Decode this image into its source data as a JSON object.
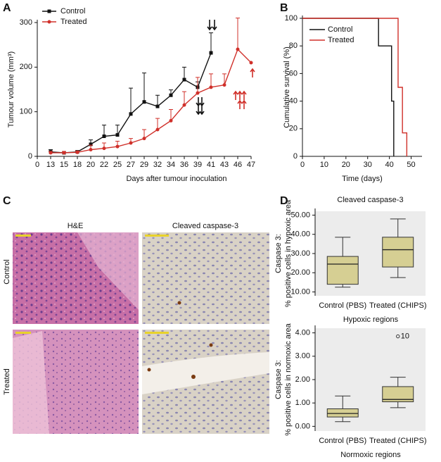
{
  "chart_data": [
    {
      "type": "line",
      "panel_label": "A",
      "x_label": "Days after tumour inoculation",
      "y_label": "Tumour volume (mm³)",
      "categories": [
        "0",
        "13",
        "15",
        "18",
        "20",
        "22",
        "25",
        "27",
        "29",
        "32",
        "34",
        "36",
        "39",
        "41",
        "43",
        "46",
        "47"
      ],
      "ylim": [
        0,
        300
      ],
      "yticks": [
        0,
        100,
        200,
        300
      ],
      "series": [
        {
          "name": "Control",
          "color": "#111111",
          "marker": "square",
          "values": [
            null,
            10,
            8,
            10,
            27,
            45,
            48,
            95,
            122,
            112,
            137,
            172,
            155,
            232,
            null,
            null,
            null
          ],
          "errors": [
            null,
            5,
            3,
            3,
            10,
            25,
            22,
            58,
            65,
            25,
            12,
            28,
            12,
            45,
            null,
            null,
            null
          ]
        },
        {
          "name": "Treated",
          "color": "#d0302a",
          "marker": "circle",
          "values": [
            null,
            8,
            8,
            9,
            15,
            18,
            22,
            30,
            40,
            60,
            80,
            115,
            142,
            155,
            160,
            240,
            210
          ],
          "errors": [
            null,
            3,
            3,
            3,
            10,
            12,
            12,
            10,
            20,
            25,
            25,
            30,
            35,
            30,
            25,
            70,
            null
          ]
        }
      ]
    },
    {
      "type": "step",
      "panel_label": "B",
      "x_label": "Time (days)",
      "y_label": "Cumulative survival (%)",
      "xlim": [
        0,
        55
      ],
      "xticks": [
        0,
        10,
        20,
        30,
        40,
        50
      ],
      "ylim": [
        0,
        100
      ],
      "yticks": [
        0,
        20,
        40,
        60,
        80,
        100
      ],
      "series": [
        {
          "name": "Control",
          "color": "#111111",
          "x": [
            0,
            35,
            35,
            41,
            41,
            42,
            42
          ],
          "values": [
            100,
            100,
            80,
            80,
            40,
            40,
            0
          ]
        },
        {
          "name": "Treated",
          "color": "#d0302a",
          "x": [
            0,
            44,
            44,
            46,
            46,
            48,
            48
          ],
          "values": [
            100,
            100,
            50,
            50,
            17,
            17,
            0
          ]
        }
      ]
    },
    {
      "type": "box",
      "panel_label": "D",
      "title": "Cleaved caspase-3",
      "x_label": "Hypoxic regions",
      "y_label": [
        "Caspase 3:",
        "% positive cells in hypoxic area"
      ],
      "categories": [
        "Control (PBS)",
        "Treated (CHIPS)"
      ],
      "color": "#d6cf93",
      "ylim": [
        8,
        52
      ],
      "yticks": [
        {
          "value": 10,
          "label": "10.00"
        },
        {
          "value": 20,
          "label": "20.00"
        },
        {
          "value": 30,
          "label": "30.00"
        },
        {
          "value": 40,
          "label": "40.00"
        },
        {
          "value": 50,
          "label": "50.00"
        }
      ],
      "boxes": [
        {
          "min": 12.5,
          "q1": 14,
          "median": 24.5,
          "q3": 28.5,
          "max": 38.5
        },
        {
          "min": 17.5,
          "q1": 23,
          "median": 32,
          "q3": 38.5,
          "max": 48
        }
      ]
    },
    {
      "type": "box",
      "x_label": "Normoxic regions",
      "y_label": [
        "Caspase 3:",
        "% positive cells in normoxic area"
      ],
      "categories": [
        "Control (PBS)",
        "Treated (CHIPS)"
      ],
      "color": "#d6cf93",
      "ylim": [
        -0.2,
        4.2
      ],
      "yticks": [
        {
          "value": 0,
          "label": "0.00"
        },
        {
          "value": 1,
          "label": "1.00"
        },
        {
          "value": 2,
          "label": "2.00"
        },
        {
          "value": 3,
          "label": "3.00"
        },
        {
          "value": 4,
          "label": "4.00"
        }
      ],
      "boxes": [
        {
          "min": 0.2,
          "q1": 0.4,
          "median": 0.55,
          "q3": 0.75,
          "max": 1.3
        },
        {
          "min": 0.8,
          "q1": 1.05,
          "median": 1.15,
          "q3": 1.7,
          "max": 2.1,
          "outliers": [
            {
              "value": 3.85,
              "label": "10"
            }
          ]
        }
      ]
    }
  ],
  "panel_c": {
    "panel_label": "C",
    "columns": [
      "H&E",
      "Cleaved caspase-3"
    ],
    "rows": [
      "Control",
      "Treated"
    ]
  }
}
